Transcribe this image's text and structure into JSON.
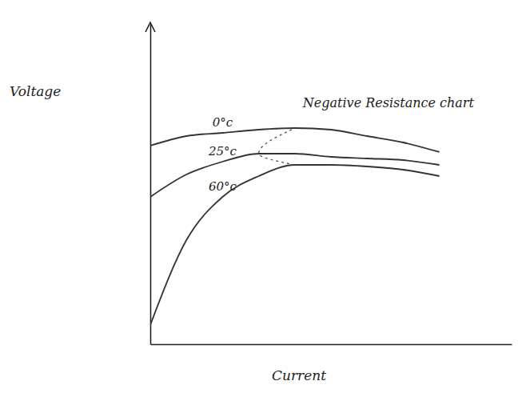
{
  "chart_data": {
    "type": "line",
    "y_label": "Voltage",
    "x_label": "Current",
    "annotation": "Negative Resistance chart",
    "x": [
      0,
      1,
      2,
      3,
      4,
      5,
      6,
      7,
      8
    ],
    "xlim": [
      0,
      10
    ],
    "ylim": [
      0,
      10
    ],
    "tick_labels": false,
    "grid": false,
    "series": [
      {
        "name": "0°c",
        "color": "#333333",
        "line_style": "solid",
        "values": [
          6.2,
          6.5,
          6.6,
          6.7,
          6.75,
          6.7,
          6.5,
          6.3,
          6.0
        ]
      },
      {
        "name": "25°c",
        "color": "#333333",
        "line_style": "solid",
        "values": [
          4.6,
          5.3,
          5.7,
          5.95,
          5.95,
          5.85,
          5.8,
          5.75,
          5.6
        ]
      },
      {
        "name": "60°c",
        "color": "#333333",
        "line_style": "solid",
        "values": [
          0.6,
          3.25,
          4.6,
          5.25,
          5.6,
          5.6,
          5.55,
          5.45,
          5.25
        ]
      }
    ]
  }
}
